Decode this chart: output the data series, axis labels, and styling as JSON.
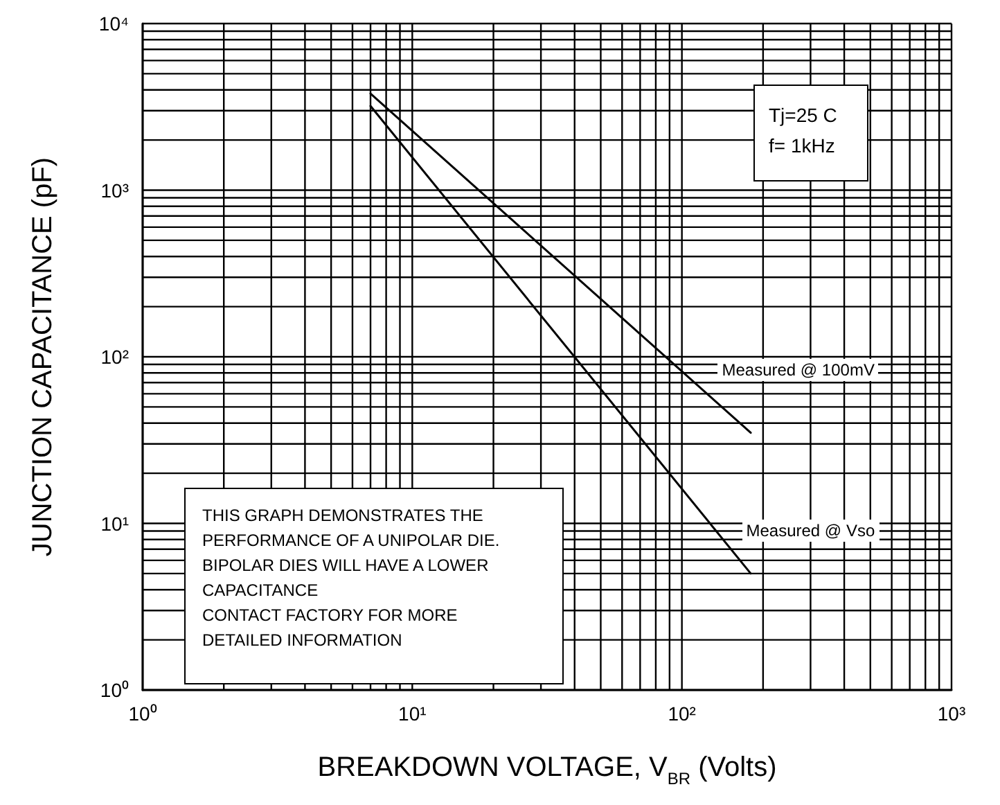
{
  "chart_data": {
    "type": "line",
    "xlabel": "BREAKDOWN VOLTAGE, V$_{BR}$ (Volts)",
    "ylabel": "JUNCTION CAPACITANCE (pF)",
    "series": [
      {
        "color": "#000000",
        "values": [
          3800,
          35
        ]
      },
      {
        "color": "#000000",
        "values": [
          3200,
          5
        ]
      }
    ],
    "x": [
      7,
      180
    ],
    "log": "xy",
    "xlim": [
      1,
      1000
    ],
    "ylim": [
      1,
      10000
    ],
    "xticks": [
      {
        "value": 1,
        "label": "10⁰"
      },
      {
        "value": 10,
        "label": "10¹"
      },
      {
        "value": 100,
        "label": "10²"
      },
      {
        "value": 1000,
        "label": "10³"
      }
    ],
    "yticks": [
      {
        "value": 1,
        "label": "10⁰"
      },
      {
        "value": 10,
        "label": "10¹"
      },
      {
        "value": 100,
        "label": "10²"
      },
      {
        "value": 1000,
        "label": "10³"
      },
      {
        "value": 10000,
        "label": "10⁴"
      }
    ],
    "grid": true,
    "marker": "none",
    "line_style": "solid",
    "annotations": [
      "Tj=25 C\nf= 1kHz",
      "THIS GRAPH DEMONSTRATES THE\nPERFORMANCE OF A UNIPOLAR DIE.\nBIPOLAR DIES WILL HAVE A LOWER\nCAPACITANCE\nCONTACT FACTORY FOR MORE\nDETAILED INFORMATION",
      "Measured @ 100mV",
      "Measured @ Vso"
    ]
  }
}
